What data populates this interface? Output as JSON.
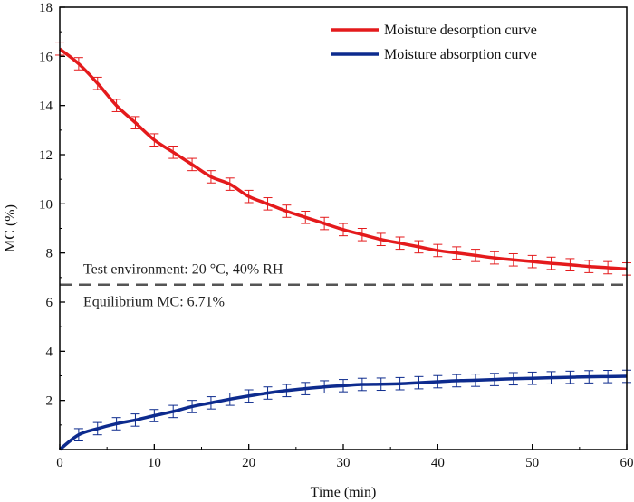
{
  "chart_data": {
    "type": "line",
    "xlabel": "Time (min)",
    "ylabel": "MC (%)",
    "xlim": [
      0,
      60
    ],
    "ylim": [
      0,
      18
    ],
    "xticks": [
      0,
      10,
      20,
      30,
      40,
      50,
      60
    ],
    "yticks": [
      2,
      4,
      6,
      8,
      10,
      12,
      14,
      16,
      18
    ],
    "grid": false,
    "legend_position": "top-right",
    "x": [
      0,
      2,
      4,
      6,
      8,
      10,
      12,
      14,
      16,
      18,
      20,
      22,
      24,
      26,
      28,
      30,
      32,
      34,
      36,
      38,
      40,
      42,
      44,
      46,
      48,
      50,
      52,
      54,
      56,
      58,
      60
    ],
    "series": [
      {
        "name": "Moisture desorption curve",
        "color": "#e41a1c",
        "values": [
          16.3,
          15.7,
          14.9,
          14.0,
          13.3,
          12.6,
          12.1,
          11.6,
          11.1,
          10.8,
          10.3,
          10.0,
          9.7,
          9.45,
          9.2,
          8.95,
          8.75,
          8.55,
          8.4,
          8.25,
          8.1,
          8.0,
          7.9,
          7.8,
          7.72,
          7.65,
          7.58,
          7.52,
          7.45,
          7.4,
          7.35
        ],
        "error": 0.25
      },
      {
        "name": "Moisture absorption curve",
        "color": "#0d2b8e",
        "values": [
          0.0,
          0.6,
          0.85,
          1.05,
          1.2,
          1.38,
          1.55,
          1.75,
          1.9,
          2.05,
          2.18,
          2.3,
          2.4,
          2.48,
          2.55,
          2.6,
          2.65,
          2.66,
          2.68,
          2.72,
          2.76,
          2.8,
          2.82,
          2.85,
          2.88,
          2.9,
          2.92,
          2.94,
          2.96,
          2.97,
          2.98
        ],
        "error": 0.25
      }
    ],
    "reference_line": {
      "y": 6.71,
      "color": "#555555",
      "style": "dashed"
    },
    "annotations": [
      "Test environment: 20 °C, 40% RH",
      "Equilibrium MC: 6.71%"
    ]
  }
}
